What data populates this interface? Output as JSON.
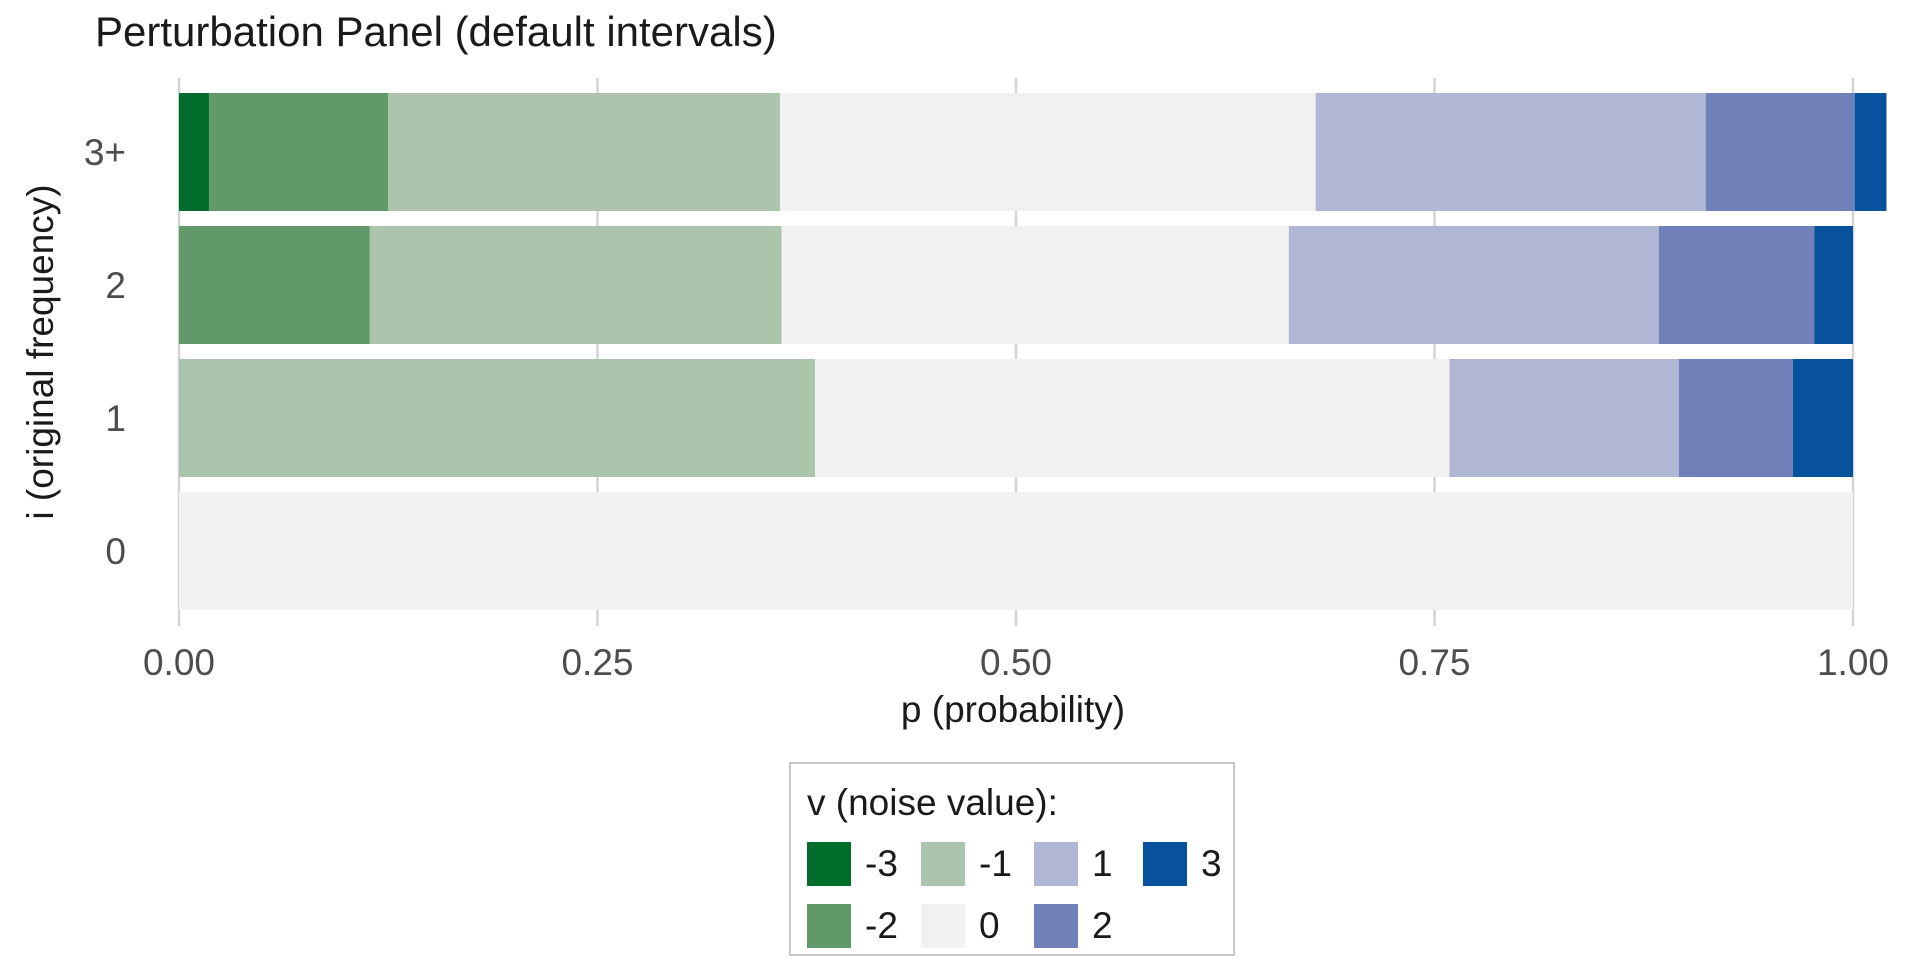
{
  "chart_data": {
    "type": "bar",
    "orientation": "horizontal",
    "stacked": true,
    "title": "Perturbation Panel (default intervals)",
    "xlabel": "p (probability)",
    "ylabel": "i (original frequency)",
    "xlim": [
      0,
      1
    ],
    "x_ticks": [
      "0.00",
      "0.25",
      "0.50",
      "0.75",
      "1.00"
    ],
    "x_tick_values": [
      0,
      0.25,
      0.5,
      0.75,
      1.0
    ],
    "grid": true,
    "legend_position": "bottom",
    "legend_title": "v (noise value):",
    "categories": [
      "3+",
      "2",
      "1",
      "0"
    ],
    "series": [
      {
        "name": "-3",
        "color": "#006d2c",
        "values": [
          0.018,
          0,
          0,
          0
        ]
      },
      {
        "name": "-2",
        "color": "#62996b",
        "values": [
          0.107,
          0.114,
          0,
          0
        ]
      },
      {
        "name": "-1",
        "color": "#abc5ac",
        "values": [
          0.234,
          0.246,
          0.38,
          0
        ]
      },
      {
        "name": "0",
        "color": "#f1f1f1",
        "values": [
          0.32,
          0.303,
          0.379,
          1.0
        ]
      },
      {
        "name": "1",
        "color": "#b0b7d5",
        "values": [
          0.233,
          0.221,
          0.137,
          0
        ]
      },
      {
        "name": "2",
        "color": "#7080b8",
        "values": [
          0.089,
          0.093,
          0.068,
          0
        ]
      },
      {
        "name": "3",
        "color": "#08519c",
        "values": [
          0.019,
          0.023,
          0.036,
          0
        ]
      }
    ]
  }
}
